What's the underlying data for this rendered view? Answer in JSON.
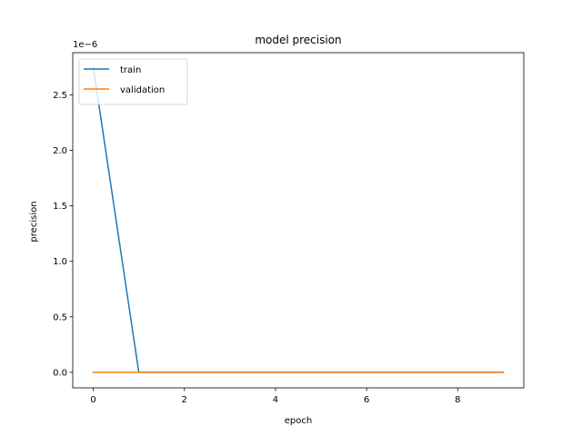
{
  "chart_data": {
    "type": "line",
    "title": "model precision",
    "xlabel": "epoch",
    "ylabel": "precision",
    "y_offset_label": "1e−6",
    "xlim": [
      -0.45,
      9.45
    ],
    "ylim": [
      -1.4e-07,
      2.88e-06
    ],
    "x_ticks": [
      0,
      2,
      4,
      6,
      8
    ],
    "x_tick_labels": [
      "0",
      "2",
      "4",
      "6",
      "8"
    ],
    "y_ticks": [
      0,
      5e-07,
      1e-06,
      1.5e-06,
      2e-06,
      2.5e-06
    ],
    "y_tick_labels": [
      "0.0",
      "0.5",
      "1.0",
      "1.5",
      "2.0",
      "2.5"
    ],
    "grid": false,
    "legend_position": "upper-left",
    "series": [
      {
        "name": "train",
        "color": "#1f77b4",
        "x": [
          0,
          1,
          2,
          3,
          4,
          5,
          6,
          7,
          8,
          9
        ],
        "values": [
          2.75e-06,
          0,
          0,
          0,
          0,
          0,
          0,
          0,
          0,
          0
        ]
      },
      {
        "name": "validation",
        "color": "#ff7f0e",
        "x": [
          0,
          1,
          2,
          3,
          4,
          5,
          6,
          7,
          8,
          9
        ],
        "values": [
          0,
          0,
          0,
          0,
          0,
          0,
          0,
          0,
          0,
          0
        ]
      }
    ]
  }
}
